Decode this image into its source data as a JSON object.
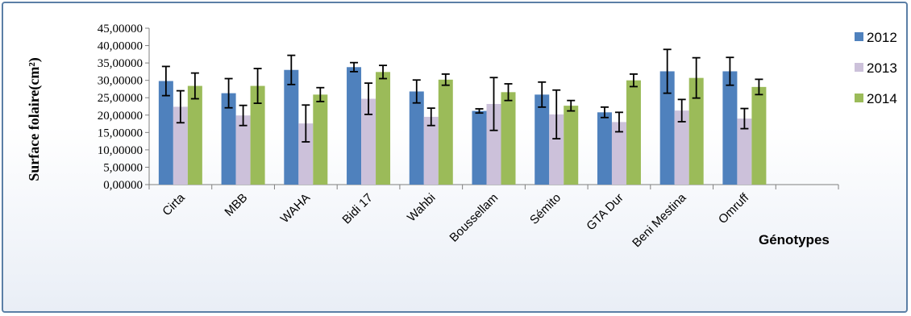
{
  "chart_data": {
    "type": "bar",
    "ylabel": "Surface folaire(cm²)",
    "xlabel": "Génotypes",
    "ylim": [
      0,
      45
    ],
    "yticks": [
      0,
      5,
      10,
      15,
      20,
      25,
      30,
      35,
      40,
      45
    ],
    "ytick_labels": [
      "0,00000",
      "5,00000",
      "10,00000",
      "15,00000",
      "20,00000",
      "25,00000",
      "30,00000",
      "35,00000",
      "40,00000",
      "45,00000"
    ],
    "categories": [
      "Cirta",
      "MBB",
      "WAHA",
      "Bidi 17",
      "Wahbi",
      "Boussellam",
      "Sémito",
      "GTA Dur",
      "Beni Mestina",
      "Omruff"
    ],
    "empty_trailing_slots": 1,
    "legend_position": "right",
    "series": [
      {
        "name": "2012",
        "color": "#4f81bd",
        "values": [
          29.8,
          26.3,
          33.0,
          33.8,
          26.8,
          21.2,
          25.9,
          20.8,
          32.6,
          32.6
        ],
        "errors": [
          4.2,
          4.2,
          4.2,
          1.3,
          3.3,
          0.6,
          3.6,
          1.5,
          6.3,
          4.0
        ]
      },
      {
        "name": "2013",
        "color": "#ccc1da",
        "values": [
          22.4,
          19.9,
          17.6,
          24.7,
          19.5,
          23.2,
          20.2,
          18.0,
          21.3,
          19.0
        ],
        "errors": [
          4.6,
          2.9,
          5.3,
          4.5,
          2.5,
          7.6,
          7.0,
          2.8,
          3.2,
          2.9
        ]
      },
      {
        "name": "2014",
        "color": "#9bbb59",
        "values": [
          28.4,
          28.4,
          25.9,
          32.4,
          30.2,
          26.6,
          22.7,
          30.0,
          30.7,
          28.1
        ],
        "errors": [
          3.7,
          5.0,
          2.0,
          1.9,
          1.6,
          2.4,
          1.5,
          1.8,
          5.8,
          2.2
        ]
      }
    ]
  }
}
